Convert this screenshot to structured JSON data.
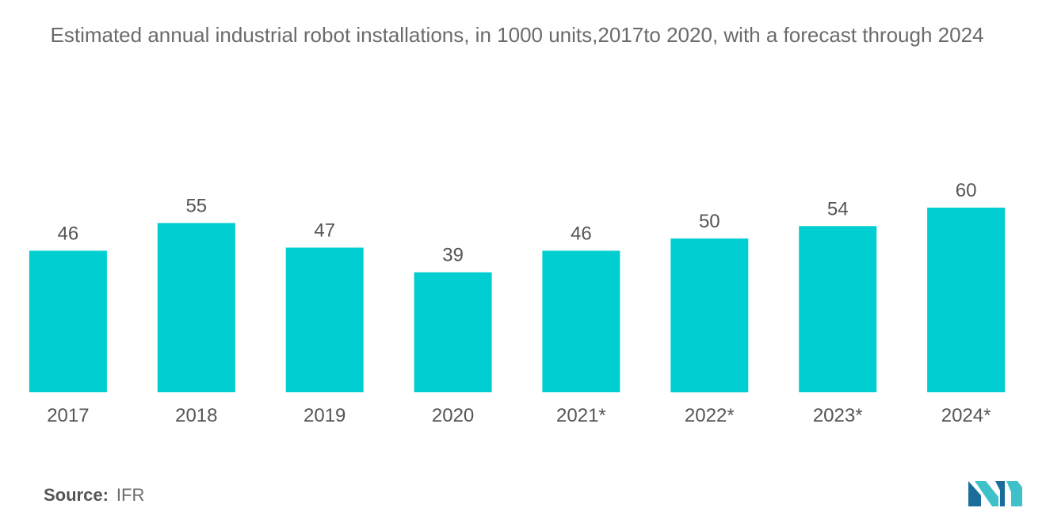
{
  "chart_data": {
    "type": "bar",
    "title": "Estimated annual industrial robot installations, in 1000 units,2017to 2020, with a forecast through 2024",
    "categories": [
      "2017",
      "2018",
      "2019",
      "2020",
      "2021*",
      "2022*",
      "2023*",
      "2024*"
    ],
    "values": [
      46,
      55,
      47,
      39,
      46,
      50,
      54,
      60
    ],
    "xlabel": "",
    "ylabel": "",
    "ylim": [
      0,
      60
    ],
    "grid": false,
    "legend": "none",
    "bar_color": "#00ced1"
  },
  "source": {
    "label": "Source:",
    "value": "IFR"
  },
  "logo": {
    "icon": "mordor-intelligence-logo",
    "colors": [
      "#1b6e9b",
      "#3fc1c9"
    ]
  }
}
